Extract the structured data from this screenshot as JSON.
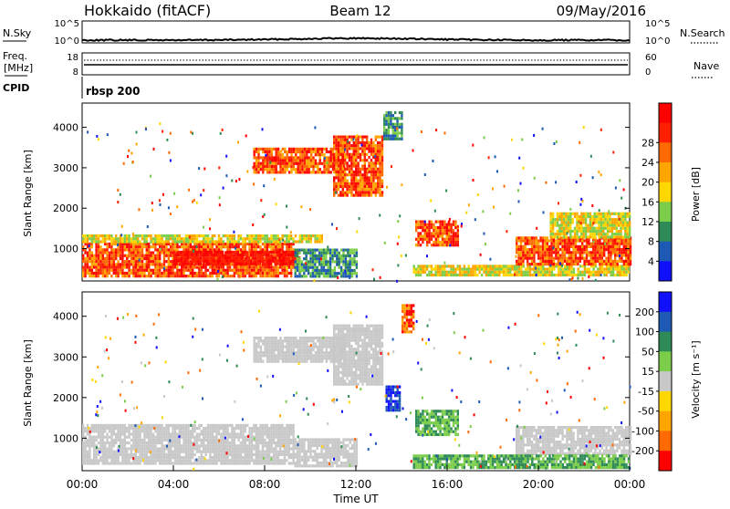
{
  "header": {
    "radar": "Hokkaido (fitACF)",
    "beam": "Beam 12",
    "date": "09/May/2016"
  },
  "nsky_panel": {
    "left_label": "N.Sky",
    "left_ticks": [
      "10^5",
      "10^0"
    ],
    "right_ticks": [
      "10^5",
      "10^0"
    ],
    "right_label": "N.Search"
  },
  "freq_panel": {
    "left_label_top": "Freq.",
    "left_label_unit": "[MHz]",
    "left_ticks": [
      "18",
      "8"
    ],
    "right_ticks": [
      "60",
      "0"
    ],
    "right_label": "Nave"
  },
  "cpid": {
    "label": "CPID",
    "value": "rbsp 200"
  },
  "chart_data": [
    {
      "type": "heatmap",
      "quantity": "Power",
      "ylabel": "Slant Range [km]",
      "ylim": [
        200,
        4600
      ],
      "yticks": [
        "1000",
        "2000",
        "3000",
        "4000"
      ],
      "xlim": [
        0,
        24
      ],
      "colorbar": {
        "label": "Power [dB]",
        "ticks": [
          "4",
          "8",
          "12",
          "16",
          "20",
          "24",
          "28"
        ],
        "colors": [
          "#1010ff",
          "#1e5ab4",
          "#2e8b57",
          "#7ccd4a",
          "#ffd700",
          "#ffa500",
          "#ff6a00",
          "#ff2000",
          "#ff0000"
        ]
      },
      "regions": [
        {
          "t0": 0.0,
          "t1": 9.3,
          "r0": 350,
          "r1": 1150,
          "level": "high"
        },
        {
          "t0": 4.0,
          "t1": 9.5,
          "r0": 600,
          "r1": 950,
          "level": "max"
        },
        {
          "t0": 0.0,
          "t1": 10.5,
          "r0": 1150,
          "r1": 1350,
          "level": "mid"
        },
        {
          "t0": 9.3,
          "t1": 12.0,
          "r0": 350,
          "r1": 1000,
          "level": "low"
        },
        {
          "t0": 7.5,
          "t1": 11.5,
          "r0": 2900,
          "r1": 3500,
          "level": "high"
        },
        {
          "t0": 11.0,
          "t1": 13.2,
          "r0": 2300,
          "r1": 3800,
          "level": "high"
        },
        {
          "t0": 14.6,
          "t1": 16.5,
          "r0": 1100,
          "r1": 1700,
          "level": "high"
        },
        {
          "t0": 13.2,
          "t1": 14.0,
          "r0": 3700,
          "r1": 4400,
          "level": "low"
        },
        {
          "t0": 14.5,
          "t1": 24.0,
          "r0": 350,
          "r1": 600,
          "level": "mid"
        },
        {
          "t0": 19.0,
          "t1": 24.0,
          "r0": 600,
          "r1": 1300,
          "level": "high"
        },
        {
          "t0": 20.5,
          "t1": 24.0,
          "r0": 1300,
          "r1": 1900,
          "level": "mid"
        }
      ]
    },
    {
      "type": "heatmap",
      "quantity": "Velocity",
      "ylabel": "Slant Range [km]",
      "ylim": [
        200,
        4600
      ],
      "yticks": [
        "1000",
        "2000",
        "3000",
        "4000"
      ],
      "xlim": [
        0,
        24
      ],
      "colorbar": {
        "label": "Velocity [m s⁻¹]",
        "ticks": [
          "200",
          "100",
          "50",
          "15",
          "-15",
          "-50",
          "-100",
          "-200"
        ],
        "colors": [
          "#1010ff",
          "#1e5ab4",
          "#2e8b57",
          "#7ccd4a",
          "#c8c8c8",
          "#ffd700",
          "#ffa500",
          "#ff6a00",
          "#ff0000"
        ]
      },
      "regions": [
        {
          "t0": 0.0,
          "t1": 9.3,
          "r0": 350,
          "r1": 1350,
          "level": "ground"
        },
        {
          "t0": 9.3,
          "t1": 12.0,
          "r0": 350,
          "r1": 1000,
          "level": "ground"
        },
        {
          "t0": 7.5,
          "t1": 11.5,
          "r0": 2900,
          "r1": 3500,
          "level": "ground"
        },
        {
          "t0": 11.0,
          "t1": 13.2,
          "r0": 2300,
          "r1": 3800,
          "level": "ground"
        },
        {
          "t0": 14.6,
          "t1": 16.5,
          "r0": 1100,
          "r1": 1700,
          "level": "green"
        },
        {
          "t0": 14.0,
          "t1": 14.5,
          "r0": 3600,
          "r1": 4300,
          "level": "red"
        },
        {
          "t0": 13.3,
          "t1": 13.9,
          "r0": 1700,
          "r1": 2300,
          "level": "blue"
        },
        {
          "t0": 19.0,
          "t1": 24.0,
          "r0": 600,
          "r1": 1300,
          "level": "ground"
        },
        {
          "t0": 14.5,
          "t1": 24.0,
          "r0": 300,
          "r1": 600,
          "level": "green"
        }
      ]
    }
  ],
  "xaxis": {
    "ticks": [
      "00:00",
      "04:00",
      "08:00",
      "12:00",
      "16:00",
      "20:00",
      "00:00"
    ],
    "label": "Time UT"
  }
}
